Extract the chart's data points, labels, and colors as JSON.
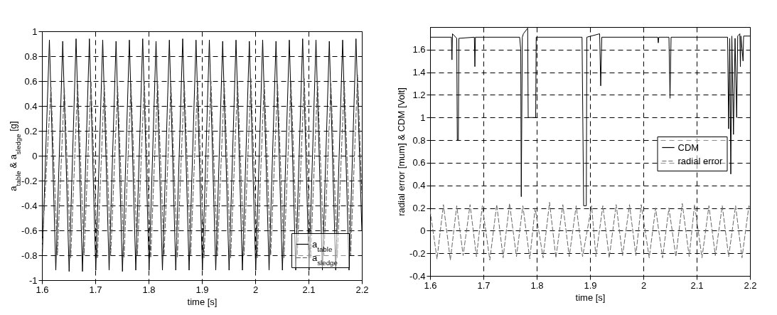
{
  "chart_data": [
    {
      "type": "line",
      "xlabel": "time [s]",
      "ylabel": "a$_{table}$ & a$_{sledge}$ [g]",
      "xlim": [
        1.6,
        2.2
      ],
      "xticks": [
        1.6,
        1.7,
        1.8,
        1.9,
        2,
        2.1,
        2.2
      ],
      "ylim": [
        -1,
        1
      ],
      "yticks": [
        -1,
        -0.8,
        -0.6,
        -0.4,
        -0.2,
        0,
        0.2,
        0.4,
        0.6,
        0.8,
        1
      ],
      "grid": true,
      "legend": "bottom right",
      "series": [
        {
          "name": "a$_{table}$",
          "color": "#000000",
          "line_style": "solid",
          "x": [
            1.6,
            1.614,
            1.626,
            1.639,
            1.651,
            1.664,
            1.676,
            1.689,
            1.701,
            1.714,
            1.726,
            1.739,
            1.751,
            1.764,
            1.776,
            1.789,
            1.801,
            1.814,
            1.826,
            1.839,
            1.851,
            1.864,
            1.876,
            1.889,
            1.901,
            1.914,
            1.926,
            1.939,
            1.951,
            1.964,
            1.976,
            1.989,
            2.001,
            2.014,
            2.026,
            2.039,
            2.051,
            2.064,
            2.076,
            2.089,
            2.101,
            2.114,
            2.126,
            2.139,
            2.151,
            2.164,
            2.176,
            2.189,
            2.2
          ],
          "values": [
            -0.9,
            0.93,
            -0.92,
            0.92,
            -0.93,
            0.94,
            -0.93,
            0.94,
            -0.92,
            0.93,
            -0.92,
            0.92,
            -0.93,
            0.93,
            -0.92,
            0.94,
            -0.92,
            0.92,
            -0.92,
            0.93,
            -0.92,
            0.94,
            -0.92,
            0.93,
            -0.92,
            0.93,
            -0.92,
            0.92,
            -0.92,
            0.93,
            -0.92,
            0.92,
            -0.92,
            0.93,
            -0.92,
            0.92,
            -0.92,
            0.93,
            -0.92,
            0.94,
            -0.92,
            0.93,
            -0.92,
            0.92,
            -0.92,
            0.93,
            -0.92,
            0.94,
            -0.6
          ]
        },
        {
          "name": "a$_{sledge}$",
          "color": "#555555",
          "line_style": "dashed",
          "x": [
            1.6,
            1.617,
            1.629,
            1.642,
            1.654,
            1.667,
            1.679,
            1.692,
            1.704,
            1.717,
            1.729,
            1.742,
            1.754,
            1.767,
            1.779,
            1.792,
            1.804,
            1.817,
            1.829,
            1.842,
            1.854,
            1.867,
            1.879,
            1.892,
            1.904,
            1.917,
            1.929,
            1.942,
            1.954,
            1.967,
            1.979,
            1.992,
            2.004,
            2.017,
            2.029,
            2.042,
            2.054,
            2.067,
            2.079,
            2.092,
            2.104,
            2.117,
            2.129,
            2.142,
            2.154,
            2.167,
            2.179,
            2.192,
            2.2
          ],
          "values": [
            -0.75,
            0.55,
            -0.8,
            0.55,
            -0.82,
            0.58,
            -0.8,
            0.6,
            -0.82,
            0.58,
            -0.8,
            0.56,
            -0.82,
            0.58,
            -0.8,
            0.6,
            -0.82,
            0.6,
            -0.8,
            0.58,
            -0.82,
            0.6,
            -0.8,
            0.6,
            -0.82,
            0.6,
            -0.8,
            0.58,
            -0.82,
            0.6,
            -0.8,
            0.62,
            -0.82,
            0.6,
            -0.8,
            0.58,
            -0.82,
            0.6,
            -0.8,
            0.62,
            -0.82,
            0.6,
            -0.8,
            0.58,
            -0.82,
            0.6,
            -0.8,
            0.65,
            -0.3
          ]
        }
      ]
    },
    {
      "type": "line",
      "xlabel": "time [s]",
      "ylabel": "radial error [mum] & CDM [Volt]",
      "xlim": [
        1.6,
        2.2
      ],
      "xticks": [
        1.6,
        1.7,
        1.8,
        1.9,
        2,
        2.1,
        2.2
      ],
      "ylim": [
        -0.4,
        1.8
      ],
      "yticks": [
        -0.4,
        -0.2,
        0,
        0.2,
        0.4,
        0.6,
        0.8,
        1,
        1.2,
        1.4,
        1.6
      ],
      "grid": true,
      "legend": "right",
      "series": [
        {
          "name": "CDM",
          "color": "#000000",
          "line_style": "solid",
          "x": [
            1.6,
            1.64,
            1.641,
            1.642,
            1.65,
            1.651,
            1.653,
            1.654,
            1.683,
            1.684,
            1.685,
            1.768,
            1.77,
            1.771,
            1.773,
            1.775,
            1.783,
            1.784,
            1.798,
            1.799,
            1.885,
            1.888,
            1.893,
            1.894,
            1.918,
            1.92,
            1.922,
            2.027,
            2.028,
            2.029,
            2.048,
            2.05,
            2.052,
            2.158,
            2.16,
            2.162,
            2.164,
            2.166,
            2.169,
            2.172,
            2.175,
            2.177,
            2.181,
            2.182,
            2.183,
            2.187,
            2.188,
            2.2
          ],
          "values": [
            1.71,
            1.71,
            1.51,
            1.74,
            1.7,
            0.8,
            0.8,
            1.7,
            1.71,
            1.45,
            1.71,
            1.71,
            1.6,
            0.3,
            1.71,
            1.74,
            1.79,
            1,
            1,
            1.71,
            1.71,
            0.22,
            0.22,
            1.71,
            1.74,
            1.28,
            1.71,
            1.71,
            1.66,
            1.71,
            1.71,
            1.17,
            1.71,
            1.71,
            0.9,
            1.7,
            0.5,
            1.72,
            0.85,
            1.7,
            1,
            1.72,
            1.74,
            1.45,
            1.72,
            1.5,
            1.72,
            1.72
          ]
        },
        {
          "name": "radial error",
          "color": "#666666",
          "line_style": "dashed",
          "x": [
            1.6,
            1.613,
            1.625,
            1.638,
            1.65,
            1.662,
            1.675,
            1.687,
            1.698,
            1.712,
            1.725,
            1.737,
            1.749,
            1.762,
            1.774,
            1.787,
            1.797,
            1.812,
            1.824,
            1.836,
            1.849,
            1.861,
            1.874,
            1.886,
            1.903,
            1.911,
            1.924,
            1.936,
            1.949,
            1.961,
            1.974,
            1.986,
            1.996,
            2.011,
            2.023,
            2.036,
            2.048,
            2.061,
            2.073,
            2.086,
            2.096,
            2.11,
            2.123,
            2.135,
            2.148,
            2.16,
            2.173,
            2.185,
            2.198,
            2.2
          ],
          "values": [
            0.18,
            -0.25,
            0.23,
            -0.26,
            0.22,
            -0.22,
            0.23,
            -0.23,
            0.22,
            -0.26,
            0.23,
            -0.24,
            0.24,
            -0.23,
            0.22,
            -0.25,
            0.2,
            -0.24,
            0.25,
            -0.24,
            0.23,
            -0.23,
            0.22,
            -0.23,
            0.22,
            -0.23,
            0.22,
            -0.24,
            0.23,
            -0.22,
            0.23,
            -0.22,
            0.23,
            -0.24,
            0.2,
            -0.24,
            0.2,
            -0.23,
            0.24,
            -0.23,
            0.23,
            -0.24,
            0.22,
            -0.22,
            0.22,
            -0.23,
            0.22,
            -0.24,
            0.22,
            0.2
          ]
        }
      ]
    }
  ]
}
